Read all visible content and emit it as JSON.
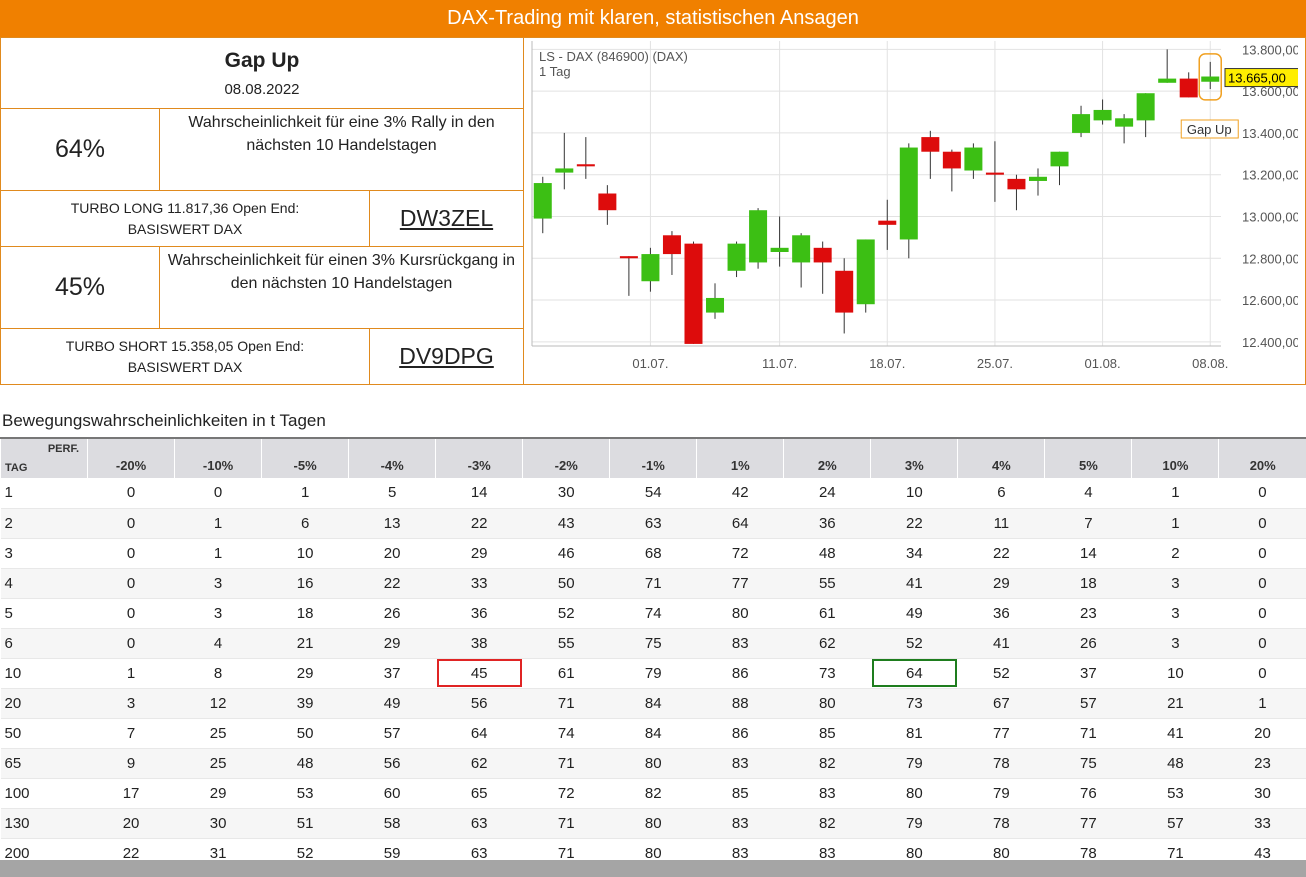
{
  "header": {
    "title": "DAX-Trading mit klaren, statistischen Ansagen"
  },
  "signal": {
    "title": "Gap Up",
    "date": "08.08.2022",
    "rally": {
      "percent": "64%",
      "text": "Wahrscheinlichkeit für eine 3% Rally in den nächsten 10 Handelstagen"
    },
    "long": {
      "text": "TURBO LONG 11.817,36 Open End: BASISWERT DAX",
      "code": "DW3ZEL"
    },
    "drop": {
      "percent": "45%",
      "text": "Wahrscheinlichkeit für einen 3% Kursrückgang in den nächsten 10 Handelstagen"
    },
    "short": {
      "text": "TURBO SHORT 15.358,05 Open End: BASISWERT DAX",
      "code": "DV9DPG"
    }
  },
  "chart_data": {
    "type": "candlestick",
    "title": "LS - DAX (846900) (DAX)",
    "subtitle": "1 Tag",
    "categories": [
      null,
      null,
      null,
      null,
      null,
      "01.07.",
      null,
      null,
      null,
      null,
      null,
      "11.07.",
      null,
      null,
      null,
      null,
      "18.07.",
      null,
      null,
      null,
      null,
      "25.07.",
      null,
      null,
      null,
      null,
      "01.08.",
      null,
      null,
      null,
      null,
      "08.08."
    ],
    "open": [
      12990,
      13210,
      13250,
      13110,
      12810,
      12690,
      12910,
      12870,
      12540,
      12740,
      12780,
      12830,
      12780,
      12850,
      12740,
      12580,
      12980,
      12890,
      13380,
      13310,
      13220,
      13210,
      13180,
      13170,
      13240,
      13400,
      13460,
      13430,
      13460,
      13640,
      13660,
      13645
    ],
    "high": [
      13190,
      13400,
      13380,
      13150,
      12810,
      12850,
      12930,
      12880,
      12680,
      12880,
      13040,
      13000,
      12920,
      12880,
      12800,
      12890,
      13080,
      13350,
      13410,
      13320,
      13350,
      13360,
      13200,
      13230,
      13310,
      13530,
      13560,
      13490,
      13590,
      13800,
      13690,
      13740
    ],
    "low": [
      12920,
      13130,
      13180,
      12960,
      12620,
      12640,
      12720,
      12390,
      12510,
      12710,
      12750,
      12760,
      12660,
      12630,
      12440,
      12540,
      12840,
      12800,
      13180,
      13120,
      13180,
      13070,
      13030,
      13100,
      13150,
      13380,
      13440,
      13350,
      13380,
      13640,
      13570,
      13610
    ],
    "close": [
      13160,
      13230,
      13240,
      13030,
      12800,
      12820,
      12820,
      12390,
      12610,
      12870,
      13030,
      12850,
      12910,
      12780,
      12540,
      12890,
      12960,
      13330,
      13310,
      13230,
      13330,
      13200,
      13130,
      13190,
      13310,
      13490,
      13510,
      13470,
      13590,
      13660,
      13570,
      13670
    ],
    "up_color": "#3cbf14",
    "down_color": "#dd0c0c",
    "ylim": [
      12380,
      13840
    ],
    "yticks": [
      {
        "value": 12400,
        "label": "12.400,00"
      },
      {
        "value": 12600,
        "label": "12.600,00"
      },
      {
        "value": 12800,
        "label": "12.800,00"
      },
      {
        "value": 13000,
        "label": "13.000,00"
      },
      {
        "value": 13200,
        "label": "13.200,00"
      },
      {
        "value": 13400,
        "label": "13.400,00"
      },
      {
        "value": 13600,
        "label": "13.600,00"
      },
      {
        "value": 13800,
        "label": "13.800,00"
      }
    ],
    "last_price": {
      "value": 13665,
      "label": "13.665,00"
    },
    "annotation": "Gap Up",
    "grid": true
  },
  "table": {
    "caption": "Bewegungswahrscheinlichkeiten in t Tagen",
    "corner_top": "PERF.",
    "corner_bottom": "TAG",
    "columns": [
      "-20%",
      "-10%",
      "-5%",
      "-4%",
      "-3%",
      "-2%",
      "-1%",
      "1%",
      "2%",
      "3%",
      "4%",
      "5%",
      "10%",
      "20%"
    ],
    "rows": [
      [
        1,
        0,
        0,
        1,
        5,
        14,
        30,
        54,
        42,
        24,
        10,
        6,
        4,
        1,
        0
      ],
      [
        2,
        0,
        1,
        6,
        13,
        22,
        43,
        63,
        64,
        36,
        22,
        11,
        7,
        1,
        0
      ],
      [
        3,
        0,
        1,
        10,
        20,
        29,
        46,
        68,
        72,
        48,
        34,
        22,
        14,
        2,
        0
      ],
      [
        4,
        0,
        3,
        16,
        22,
        33,
        50,
        71,
        77,
        55,
        41,
        29,
        18,
        3,
        0
      ],
      [
        5,
        0,
        3,
        18,
        26,
        36,
        52,
        74,
        80,
        61,
        49,
        36,
        23,
        3,
        0
      ],
      [
        6,
        0,
        4,
        21,
        29,
        38,
        55,
        75,
        83,
        62,
        52,
        41,
        26,
        3,
        0
      ],
      [
        10,
        1,
        8,
        29,
        37,
        45,
        61,
        79,
        86,
        73,
        64,
        52,
        37,
        10,
        0
      ],
      [
        20,
        3,
        12,
        39,
        49,
        56,
        71,
        84,
        88,
        80,
        73,
        67,
        57,
        21,
        1
      ],
      [
        50,
        7,
        25,
        50,
        57,
        64,
        74,
        84,
        86,
        85,
        81,
        77,
        71,
        41,
        20
      ],
      [
        65,
        9,
        25,
        48,
        56,
        62,
        71,
        80,
        83,
        82,
        79,
        78,
        75,
        48,
        23
      ],
      [
        100,
        17,
        29,
        53,
        60,
        65,
        72,
        82,
        85,
        83,
        80,
        79,
        76,
        53,
        30
      ],
      [
        130,
        20,
        30,
        51,
        58,
        63,
        71,
        80,
        83,
        82,
        79,
        78,
        77,
        57,
        33
      ],
      [
        200,
        22,
        31,
        52,
        59,
        63,
        71,
        80,
        83,
        83,
        80,
        80,
        78,
        71,
        43
      ]
    ],
    "highlights": [
      {
        "row": 6,
        "col": 5,
        "color": "#e02424"
      },
      {
        "row": 6,
        "col": 10,
        "color": "#1e7d1e"
      }
    ]
  }
}
